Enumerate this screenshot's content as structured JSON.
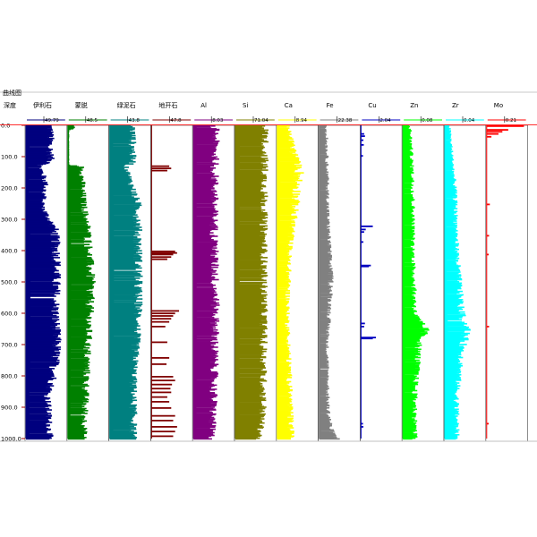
{
  "panel": {
    "title": "曲线图"
  },
  "chart_data": {
    "type": "bar",
    "orientation": "horizontal-well-log",
    "title": "曲线图",
    "depth_axis": {
      "label": "深度",
      "range": [
        0,
        1000
      ],
      "ticks": [
        "0.0",
        "100.0",
        "200.0",
        "300.0",
        "400.0",
        "500.0",
        "600.0",
        "700.0",
        "800.0",
        "900.0",
        "1000.0"
      ]
    },
    "tracks": [
      {
        "name": "伊利石",
        "max_label": "49.79",
        "color": "#00007f",
        "max": 49.79,
        "profile": [
          [
            0,
            0.62
          ],
          [
            120,
            0.62
          ],
          [
            125,
            0.35
          ],
          [
            180,
            0.5
          ],
          [
            260,
            0.42
          ],
          [
            330,
            0.72
          ],
          [
            420,
            0.78
          ],
          [
            600,
            0.74
          ],
          [
            700,
            0.78
          ],
          [
            800,
            0.7
          ],
          [
            860,
            0.55
          ],
          [
            1000,
            0.6
          ]
        ],
        "noise": 0.35
      },
      {
        "name": "蒙脱",
        "max_label": "48.5",
        "color": "#008000",
        "max": 48.5,
        "profile": [
          [
            0,
            0.15
          ],
          [
            8,
            0.15
          ],
          [
            12,
            0.03
          ],
          [
            125,
            0.03
          ],
          [
            130,
            0.35
          ],
          [
            250,
            0.4
          ],
          [
            330,
            0.5
          ],
          [
            500,
            0.58
          ],
          [
            700,
            0.5
          ],
          [
            850,
            0.45
          ],
          [
            1000,
            0.4
          ]
        ],
        "noise": 0.45
      },
      {
        "name": "绿泥石",
        "max_label": "43.8",
        "color": "#008080",
        "max": 43.8,
        "profile": [
          [
            0,
            0.58
          ],
          [
            120,
            0.58
          ],
          [
            125,
            0.4
          ],
          [
            250,
            0.7
          ],
          [
            400,
            0.72
          ],
          [
            600,
            0.72
          ],
          [
            800,
            0.6
          ],
          [
            1000,
            0.6
          ]
        ],
        "noise": 0.35
      },
      {
        "name": "地开石",
        "max_label": "47.8",
        "color": "#800000",
        "max": 47.8,
        "profile": [
          [
            0,
            0
          ],
          [
            1000,
            0
          ]
        ],
        "noise": 0,
        "spikes": [
          [
            128,
            0.45
          ],
          [
            135,
            0.5
          ],
          [
            142,
            0.4
          ],
          [
            400,
            0.6
          ],
          [
            405,
            0.65
          ],
          [
            410,
            0.55
          ],
          [
            418,
            0.5
          ],
          [
            425,
            0.4
          ],
          [
            590,
            0.7
          ],
          [
            598,
            0.6
          ],
          [
            606,
            0.55
          ],
          [
            615,
            0.5
          ],
          [
            625,
            0.45
          ],
          [
            640,
            0.35
          ],
          [
            690,
            0.4
          ],
          [
            740,
            0.45
          ],
          [
            760,
            0.38
          ],
          [
            800,
            0.55
          ],
          [
            812,
            0.6
          ],
          [
            825,
            0.52
          ],
          [
            838,
            0.48
          ],
          [
            850,
            0.5
          ],
          [
            865,
            0.4
          ],
          [
            880,
            0.45
          ],
          [
            900,
            0.5
          ],
          [
            925,
            0.6
          ],
          [
            940,
            0.55
          ],
          [
            960,
            0.65
          ],
          [
            975,
            0.6
          ],
          [
            990,
            0.55
          ]
        ]
      },
      {
        "name": "Al",
        "max_label": "8.03",
        "color": "#800080",
        "max": 8.03,
        "profile": [
          [
            0,
            0.55
          ],
          [
            300,
            0.52
          ],
          [
            600,
            0.55
          ],
          [
            900,
            0.5
          ],
          [
            1000,
            0.45
          ]
        ],
        "noise": 0.45
      },
      {
        "name": "Si",
        "max_label": "71.04",
        "color": "#808000",
        "max": 71.04,
        "profile": [
          [
            0,
            0.75
          ],
          [
            300,
            0.72
          ],
          [
            600,
            0.72
          ],
          [
            900,
            0.7
          ],
          [
            1000,
            0.6
          ]
        ],
        "noise": 0.3
      },
      {
        "name": "Ca",
        "max_label": "8.94",
        "color": "#ffff00",
        "max": 8.94,
        "profile": [
          [
            0,
            0.25
          ],
          [
            150,
            0.55
          ],
          [
            250,
            0.45
          ],
          [
            400,
            0.3
          ],
          [
            600,
            0.25
          ],
          [
            800,
            0.3
          ],
          [
            1000,
            0.35
          ]
        ],
        "noise": 0.55
      },
      {
        "name": "Fe",
        "max_label": "22.38",
        "color": "#808080",
        "max": 22.38,
        "profile": [
          [
            0,
            0.18
          ],
          [
            300,
            0.22
          ],
          [
            500,
            0.3
          ],
          [
            700,
            0.2
          ],
          [
            900,
            0.22
          ],
          [
            970,
            0.3
          ],
          [
            1000,
            0.45
          ]
        ],
        "noise": 0.5
      },
      {
        "name": "Cu",
        "max_label": "2.04",
        "color": "#0000c0",
        "max": 2.04,
        "profile": [
          [
            0,
            0
          ],
          [
            1000,
            0
          ]
        ],
        "noise": 0,
        "spikes": [
          [
            25,
            0.08
          ],
          [
            32,
            0.1
          ],
          [
            45,
            0.06
          ],
          [
            60,
            0.07
          ],
          [
            95,
            0.05
          ],
          [
            320,
            0.3
          ],
          [
            330,
            0.12
          ],
          [
            338,
            0.08
          ],
          [
            370,
            0.06
          ],
          [
            445,
            0.25
          ],
          [
            448,
            0.2
          ],
          [
            630,
            0.1
          ],
          [
            640,
            0.08
          ],
          [
            675,
            0.38
          ],
          [
            678,
            0.3
          ],
          [
            950,
            0.05
          ],
          [
            960,
            0.06
          ]
        ]
      },
      {
        "name": "Zn",
        "max_label": "0.08",
        "color": "#00ff00",
        "max": 0.08,
        "profile": [
          [
            0,
            0.18
          ],
          [
            200,
            0.25
          ],
          [
            400,
            0.25
          ],
          [
            600,
            0.3
          ],
          [
            650,
            0.55
          ],
          [
            700,
            0.4
          ],
          [
            850,
            0.3
          ],
          [
            1000,
            0.3
          ]
        ],
        "noise": 0.5
      },
      {
        "name": "Zr",
        "max_label": "0.04",
        "color": "#00ffff",
        "max": 0.04,
        "profile": [
          [
            0,
            0.12
          ],
          [
            200,
            0.25
          ],
          [
            400,
            0.3
          ],
          [
            600,
            0.42
          ],
          [
            650,
            0.55
          ],
          [
            700,
            0.45
          ],
          [
            850,
            0.3
          ],
          [
            1000,
            0.3
          ]
        ],
        "noise": 0.5
      },
      {
        "name": "Mo",
        "max_label": "0.21",
        "color": "#ff0000",
        "max": 0.21,
        "profile": [
          [
            0,
            0
          ],
          [
            1000,
            0
          ]
        ],
        "noise": 0,
        "spikes": [
          [
            0,
            0.95
          ],
          [
            12,
            0.55
          ],
          [
            18,
            0.4
          ],
          [
            25,
            0.3
          ],
          [
            34,
            0.12
          ],
          [
            250,
            0.08
          ],
          [
            350,
            0.06
          ],
          [
            410,
            0.05
          ],
          [
            640,
            0.06
          ],
          [
            950,
            0.05
          ]
        ]
      }
    ]
  }
}
